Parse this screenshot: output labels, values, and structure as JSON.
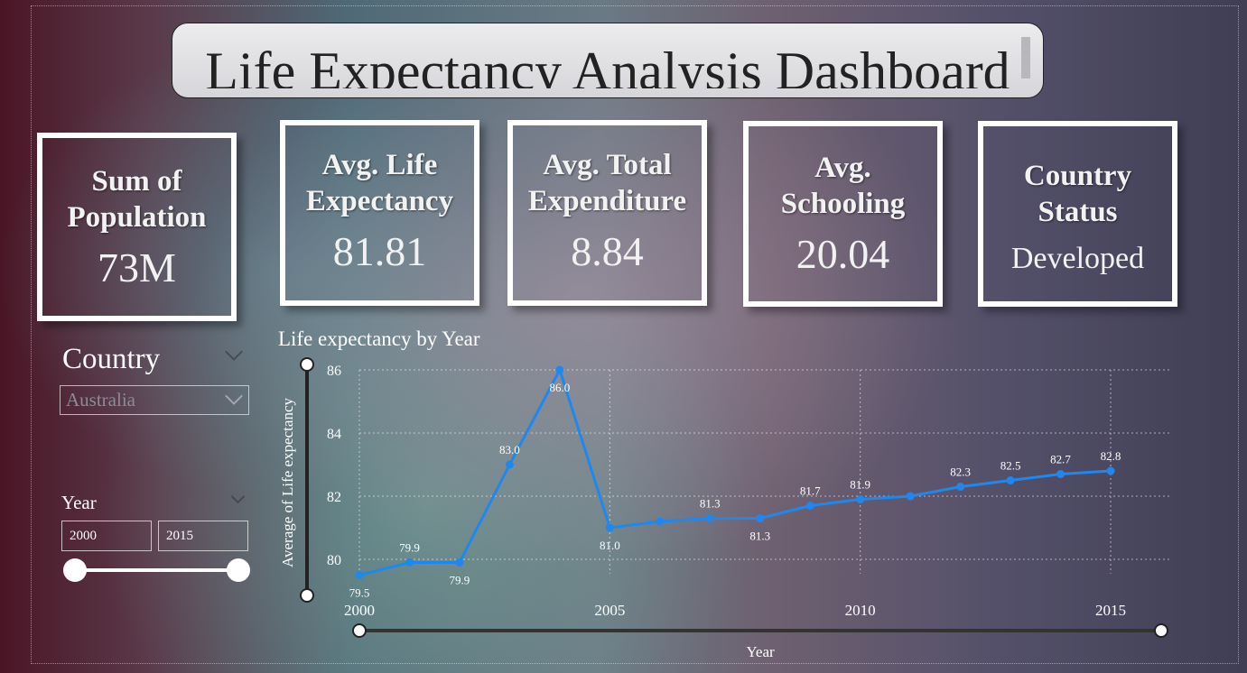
{
  "header": {
    "title": "Life Expectancy Analysis Dashboard"
  },
  "cards": [
    {
      "label_lines": [
        "Sum of",
        "Population"
      ],
      "value": "73M"
    },
    {
      "label_lines": [
        "Avg. Life",
        "Expectancy"
      ],
      "value": "81.81"
    },
    {
      "label_lines": [
        "Avg. Total",
        "Expenditure"
      ],
      "value": "8.84"
    },
    {
      "label_lines": [
        "Avg.",
        "Schooling"
      ],
      "value": "20.04"
    },
    {
      "label_lines": [
        "Country",
        "Status"
      ],
      "value": "Developed"
    }
  ],
  "country_slicer": {
    "title": "Country",
    "selected": "Australia"
  },
  "year_slicer": {
    "title": "Year",
    "from": "2000",
    "to": "2015",
    "range": [
      2000,
      2015
    ]
  },
  "chart_data": {
    "type": "line",
    "title": "Life expectancy by Year",
    "xlabel": "Year",
    "ylabel": "Average of Life expectancy",
    "x": [
      2000,
      2001,
      2002,
      2003,
      2004,
      2005,
      2006,
      2007,
      2008,
      2009,
      2010,
      2011,
      2012,
      2013,
      2014,
      2015
    ],
    "values": [
      79.5,
      79.9,
      79.9,
      83.0,
      86.0,
      81.0,
      81.2,
      81.3,
      81.3,
      81.7,
      81.9,
      82.0,
      82.3,
      82.5,
      82.7,
      82.8
    ],
    "labels": [
      "79.5",
      "79.9",
      "79.9",
      "83.0",
      "86.0",
      "81.0",
      "",
      "81.3",
      "81.3",
      "81.7",
      "81.9",
      "",
      "82.3",
      "82.5",
      "82.7",
      "82.8"
    ],
    "xticks": [
      "2000",
      "2005",
      "2010",
      "2015"
    ],
    "yticks": [
      "80",
      "82",
      "84",
      "86"
    ],
    "xlim": [
      2000,
      2016
    ],
    "ylim": [
      79.5,
      86
    ],
    "grid": true,
    "line_color": "#1e88f0"
  }
}
